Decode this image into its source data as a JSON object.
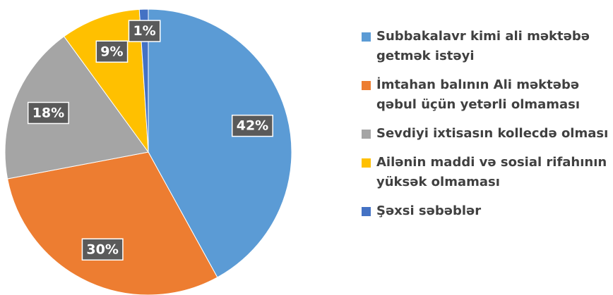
{
  "chart_data": {
    "type": "pie",
    "categories": [
      "Subbakalavr kimi ali məktəbə getmək istəyi",
      "İmtahan balının Ali məktəbə qəbul üçün yetərli olmaması",
      "Sevdiyi ixtisasın kollecdə olması",
      "Ailənin maddi və sosial rifahının yüksək olmaması",
      "Şəxsi səbəblər"
    ],
    "values": [
      42,
      30,
      18,
      9,
      1
    ],
    "value_labels": [
      "42%",
      "30%",
      "18%",
      "9%",
      "1%"
    ],
    "colors": [
      "#5b9bd5",
      "#ed7d31",
      "#a5a5a5",
      "#ffc000",
      "#4472c4"
    ],
    "legend": "right"
  }
}
